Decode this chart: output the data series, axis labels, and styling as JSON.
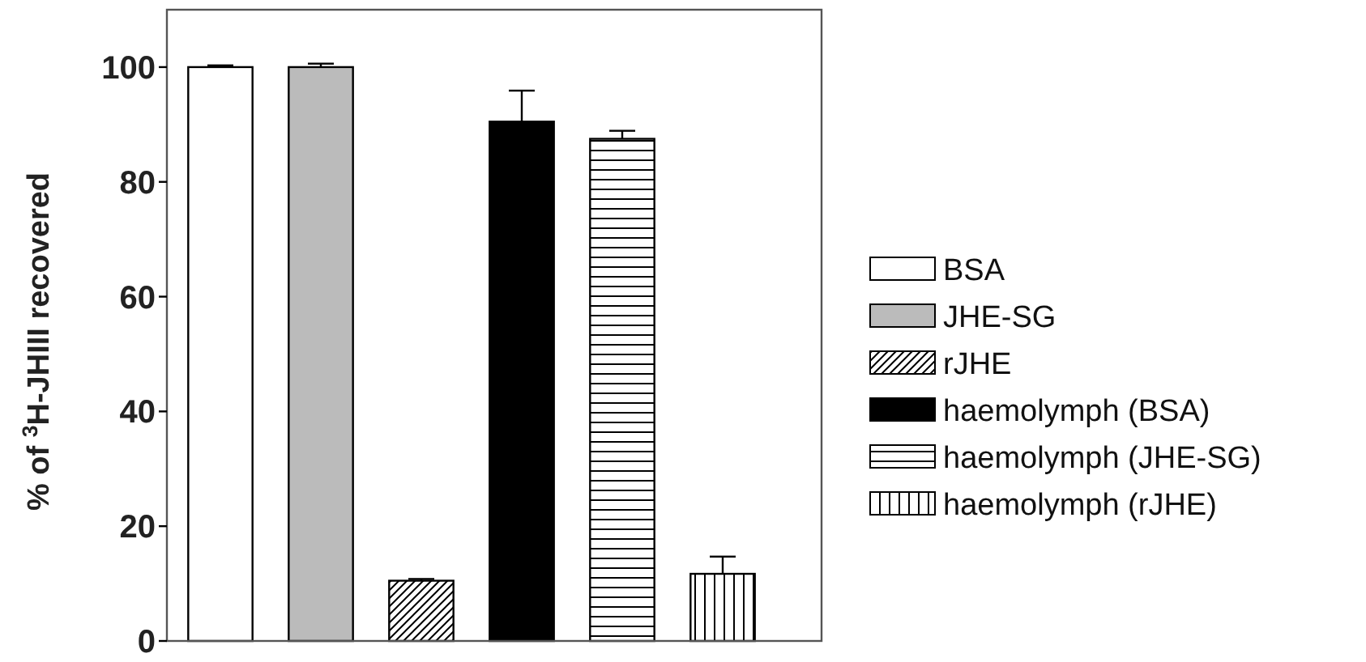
{
  "chart_data": {
    "type": "bar",
    "stacked": true,
    "ylabel": "% of $^{3}$H-JHIII recovered",
    "categories": [
      null,
      null,
      null,
      null,
      null,
      null
    ],
    "ylim": [
      0,
      110
    ],
    "yticks": [
      0,
      20,
      40,
      60,
      80,
      100
    ],
    "legend": "right",
    "grid": false,
    "series": [
      {
        "name": "BSA",
        "color": "#ffffff",
        "values": [
          100,
          null,
          null,
          null,
          null,
          null
        ],
        "errors": [
          0.3,
          null,
          null,
          null,
          null,
          null
        ]
      },
      {
        "name": "JHE-SG",
        "color": "#bbbbbb",
        "values": [
          null,
          100,
          null,
          null,
          null,
          null
        ],
        "errors": [
          null,
          0.6,
          null,
          null,
          null,
          null
        ]
      },
      {
        "name": "rJHE",
        "color": "#000000",
        "values": [
          null,
          null,
          10.5,
          null,
          null,
          null
        ],
        "errors": [
          null,
          null,
          0.3,
          null,
          null,
          null
        ]
      },
      {
        "name": "haemolymph (BSA)",
        "color": "#000000",
        "values": [
          null,
          null,
          null,
          90.5,
          null,
          null
        ],
        "errors": [
          null,
          null,
          null,
          5.4,
          null,
          null
        ]
      },
      {
        "name": "haemolymph (JHE-SG)",
        "color": "#000000",
        "values": [
          null,
          null,
          null,
          null,
          87.5,
          null
        ],
        "errors": [
          null,
          null,
          null,
          null,
          1.4,
          null
        ]
      },
      {
        "name": "haemolymph (rJHE)",
        "color": "#000000",
        "values": [
          null,
          null,
          null,
          null,
          null,
          11.7
        ],
        "errors": [
          null,
          null,
          null,
          null,
          null,
          3
        ]
      }
    ]
  }
}
